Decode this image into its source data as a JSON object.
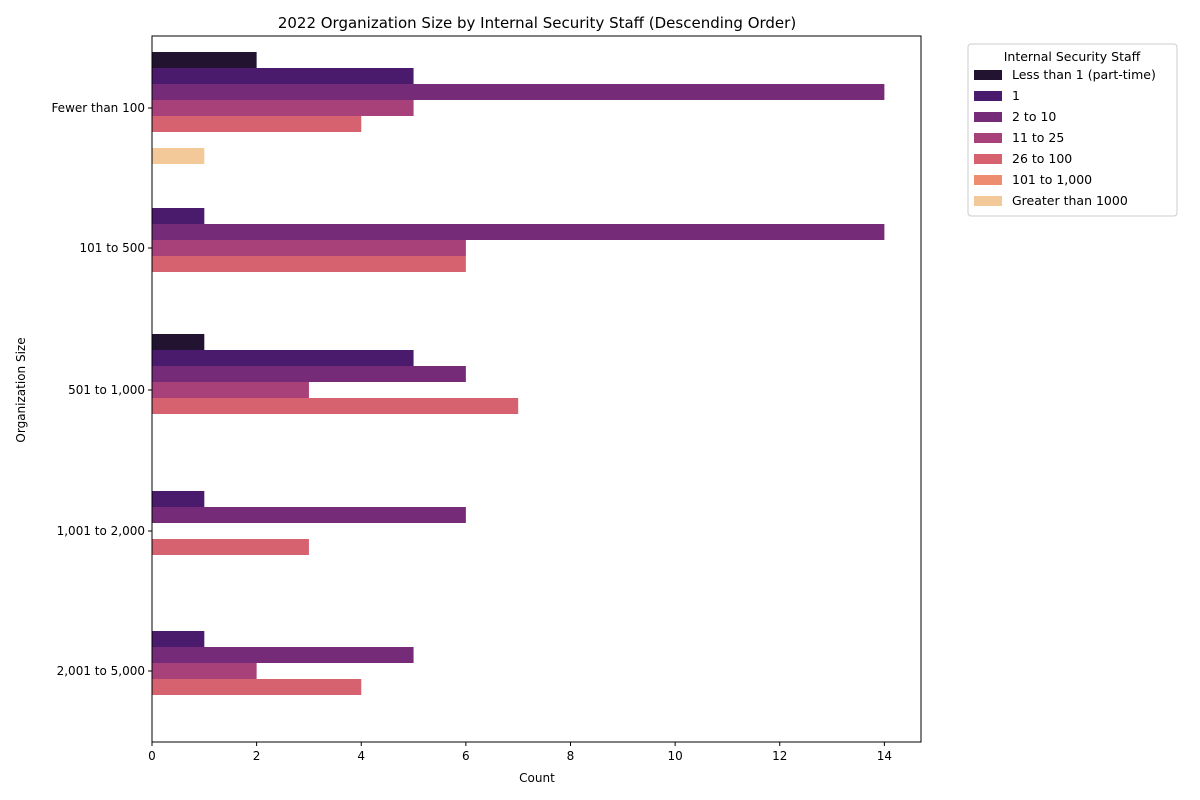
{
  "chart_data": {
    "type": "bar",
    "orientation": "horizontal",
    "title": "2022 Organization Size by Internal Security Staff (Descending Order)",
    "xlabel": "Count",
    "ylabel": "Organization Size",
    "xlim": [
      0,
      14.7
    ],
    "xticks": [
      0,
      2,
      4,
      6,
      8,
      10,
      12,
      14
    ],
    "categories": [
      "Fewer than 100",
      "101 to 500",
      "501 to 1,000",
      "1,001 to 2,000",
      "2,001 to 5,000"
    ],
    "legend": {
      "title": "Internal Security Staff",
      "placement": "upper right, outside plot"
    },
    "grid": false,
    "series": [
      {
        "name": "Less than 1 (part-time)",
        "color": "#221331",
        "values": [
          2,
          0,
          1,
          0,
          0
        ]
      },
      {
        "name": "1",
        "color": "#4a1a6d",
        "values": [
          5,
          1,
          5,
          1,
          1
        ]
      },
      {
        "name": "2 to 10",
        "color": "#762b79",
        "values": [
          14,
          14,
          6,
          6,
          5
        ]
      },
      {
        "name": "11 to 25",
        "color": "#a8407a",
        "values": [
          5,
          6,
          3,
          0,
          2
        ]
      },
      {
        "name": "26 to 100",
        "color": "#d6626f",
        "values": [
          4,
          6,
          7,
          3,
          4
        ]
      },
      {
        "name": "101 to 1,000",
        "color": "#ee8c70",
        "values": [
          0,
          0,
          0,
          0,
          0
        ]
      },
      {
        "name": "Greater than 1000",
        "color": "#f3c999",
        "values": [
          1,
          0,
          0,
          0,
          0
        ]
      }
    ]
  }
}
